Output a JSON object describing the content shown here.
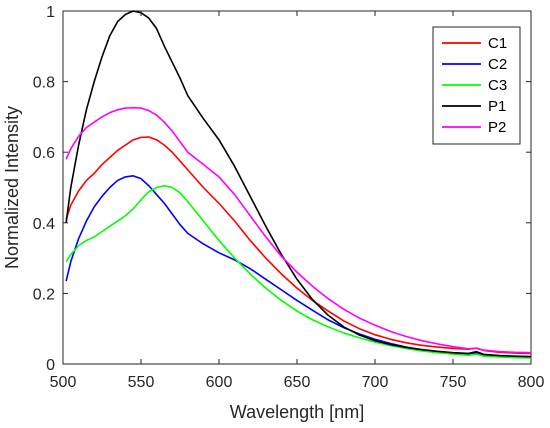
{
  "chart_data": {
    "type": "line",
    "title": "",
    "xlabel": "Wavelength [nm]",
    "ylabel": "Normalized Intensity",
    "xlim": [
      500,
      800
    ],
    "ylim": [
      0,
      1
    ],
    "xticks": [
      500,
      550,
      600,
      650,
      700,
      750,
      800
    ],
    "yticks": [
      0,
      0.2,
      0.4,
      0.6,
      0.8,
      1
    ],
    "xtick_labels": [
      "500",
      "550",
      "600",
      "650",
      "700",
      "750",
      "800"
    ],
    "ytick_labels": [
      "0",
      "0.2",
      "0.4",
      "0.6",
      "0.8",
      "1"
    ],
    "grid": false,
    "legend_position": "top-right",
    "series": [
      {
        "name": "C1",
        "color": "#ff0000",
        "x": [
          502,
          505,
          510,
          515,
          520,
          525,
          530,
          535,
          540,
          545,
          550,
          555,
          560,
          565,
          570,
          575,
          580,
          590,
          600,
          610,
          620,
          630,
          640,
          650,
          660,
          670,
          680,
          690,
          700,
          710,
          720,
          730,
          740,
          750,
          760,
          765,
          770,
          780,
          790,
          800
        ],
        "y": [
          0.41,
          0.45,
          0.49,
          0.52,
          0.54,
          0.565,
          0.585,
          0.605,
          0.62,
          0.635,
          0.642,
          0.643,
          0.635,
          0.62,
          0.6,
          0.575,
          0.55,
          0.5,
          0.455,
          0.405,
          0.35,
          0.3,
          0.255,
          0.215,
          0.18,
          0.15,
          0.122,
          0.1,
          0.083,
          0.07,
          0.06,
          0.053,
          0.048,
          0.044,
          0.042,
          0.045,
          0.038,
          0.033,
          0.031,
          0.03
        ]
      },
      {
        "name": "C2",
        "color": "#0000ff",
        "x": [
          502,
          505,
          510,
          515,
          520,
          525,
          530,
          535,
          540,
          545,
          550,
          555,
          560,
          565,
          570,
          575,
          580,
          590,
          600,
          610,
          620,
          630,
          640,
          650,
          660,
          670,
          680,
          690,
          700,
          710,
          720,
          730,
          740,
          750,
          760,
          765,
          770,
          780,
          790,
          800
        ],
        "y": [
          0.235,
          0.29,
          0.355,
          0.405,
          0.445,
          0.475,
          0.5,
          0.52,
          0.53,
          0.533,
          0.525,
          0.505,
          0.48,
          0.455,
          0.425,
          0.395,
          0.37,
          0.34,
          0.315,
          0.295,
          0.27,
          0.24,
          0.21,
          0.18,
          0.152,
          0.125,
          0.103,
          0.085,
          0.07,
          0.058,
          0.048,
          0.04,
          0.034,
          0.03,
          0.028,
          0.032,
          0.026,
          0.023,
          0.021,
          0.02
        ]
      },
      {
        "name": "C3",
        "color": "#00ff00",
        "x": [
          502,
          505,
          510,
          515,
          520,
          525,
          530,
          535,
          540,
          545,
          550,
          555,
          560,
          565,
          570,
          575,
          580,
          590,
          600,
          610,
          620,
          630,
          640,
          650,
          660,
          670,
          680,
          690,
          700,
          710,
          720,
          730,
          740,
          750,
          760,
          765,
          770,
          780,
          790,
          800
        ],
        "y": [
          0.29,
          0.31,
          0.335,
          0.35,
          0.36,
          0.375,
          0.39,
          0.405,
          0.42,
          0.44,
          0.465,
          0.488,
          0.5,
          0.505,
          0.5,
          0.485,
          0.46,
          0.405,
          0.35,
          0.3,
          0.255,
          0.215,
          0.18,
          0.15,
          0.125,
          0.105,
          0.088,
          0.074,
          0.062,
          0.052,
          0.044,
          0.037,
          0.032,
          0.028,
          0.025,
          0.028,
          0.022,
          0.02,
          0.018,
          0.017
        ]
      },
      {
        "name": "P1",
        "color": "#000000",
        "x": [
          502,
          505,
          510,
          515,
          520,
          525,
          530,
          535,
          540,
          545,
          550,
          555,
          560,
          565,
          570,
          575,
          580,
          590,
          600,
          610,
          620,
          630,
          640,
          650,
          660,
          670,
          680,
          690,
          700,
          710,
          720,
          730,
          740,
          750,
          760,
          765,
          770,
          780,
          790,
          800
        ],
        "y": [
          0.4,
          0.5,
          0.62,
          0.72,
          0.8,
          0.87,
          0.93,
          0.97,
          0.99,
          1.0,
          0.995,
          0.98,
          0.95,
          0.9,
          0.855,
          0.81,
          0.76,
          0.695,
          0.635,
          0.56,
          0.475,
          0.39,
          0.31,
          0.24,
          0.182,
          0.138,
          0.105,
          0.082,
          0.066,
          0.055,
          0.047,
          0.041,
          0.036,
          0.032,
          0.03,
          0.035,
          0.027,
          0.024,
          0.022,
          0.021
        ]
      },
      {
        "name": "P2",
        "color": "#ff00ff",
        "x": [
          502,
          505,
          510,
          515,
          520,
          525,
          530,
          535,
          540,
          545,
          550,
          555,
          560,
          565,
          570,
          575,
          580,
          590,
          600,
          610,
          620,
          630,
          640,
          650,
          660,
          670,
          680,
          690,
          700,
          710,
          720,
          730,
          740,
          750,
          760,
          765,
          770,
          780,
          790,
          800
        ],
        "y": [
          0.58,
          0.61,
          0.645,
          0.67,
          0.685,
          0.7,
          0.712,
          0.72,
          0.725,
          0.726,
          0.725,
          0.718,
          0.705,
          0.685,
          0.66,
          0.63,
          0.6,
          0.565,
          0.53,
          0.48,
          0.42,
          0.36,
          0.305,
          0.26,
          0.22,
          0.185,
          0.155,
          0.13,
          0.11,
          0.092,
          0.078,
          0.066,
          0.057,
          0.049,
          0.043,
          0.045,
          0.039,
          0.035,
          0.033,
          0.032
        ]
      }
    ]
  }
}
